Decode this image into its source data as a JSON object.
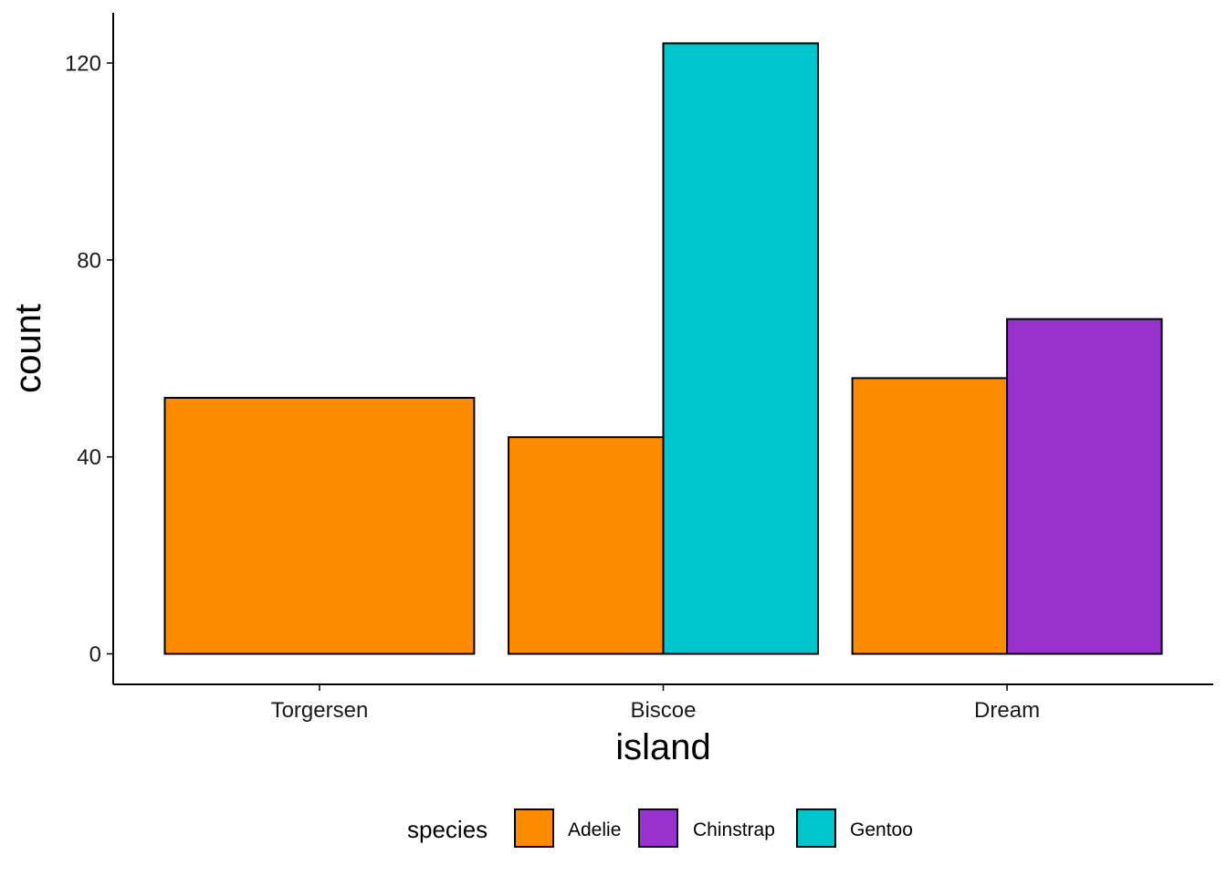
{
  "chart_data": {
    "type": "bar",
    "position": "dodge",
    "categories": [
      "Torgersen",
      "Biscoe",
      "Dream"
    ],
    "series": [
      {
        "name": "Adelie",
        "color": "#FF8C00",
        "values": [
          52,
          44,
          56
        ]
      },
      {
        "name": "Chinstrap",
        "color": "#9932CC",
        "values": [
          null,
          null,
          68
        ]
      },
      {
        "name": "Gentoo",
        "color": "#00C5CD",
        "values": [
          null,
          124,
          null
        ]
      }
    ],
    "xlabel": "island",
    "ylabel": "count",
    "yticks": [
      0,
      40,
      80,
      120
    ],
    "ylim": [
      -6.2,
      130.2
    ],
    "legend": {
      "title": "species",
      "position": "bottom",
      "entries": [
        "Adelie",
        "Chinstrap",
        "Gentoo"
      ]
    },
    "grid": false
  }
}
